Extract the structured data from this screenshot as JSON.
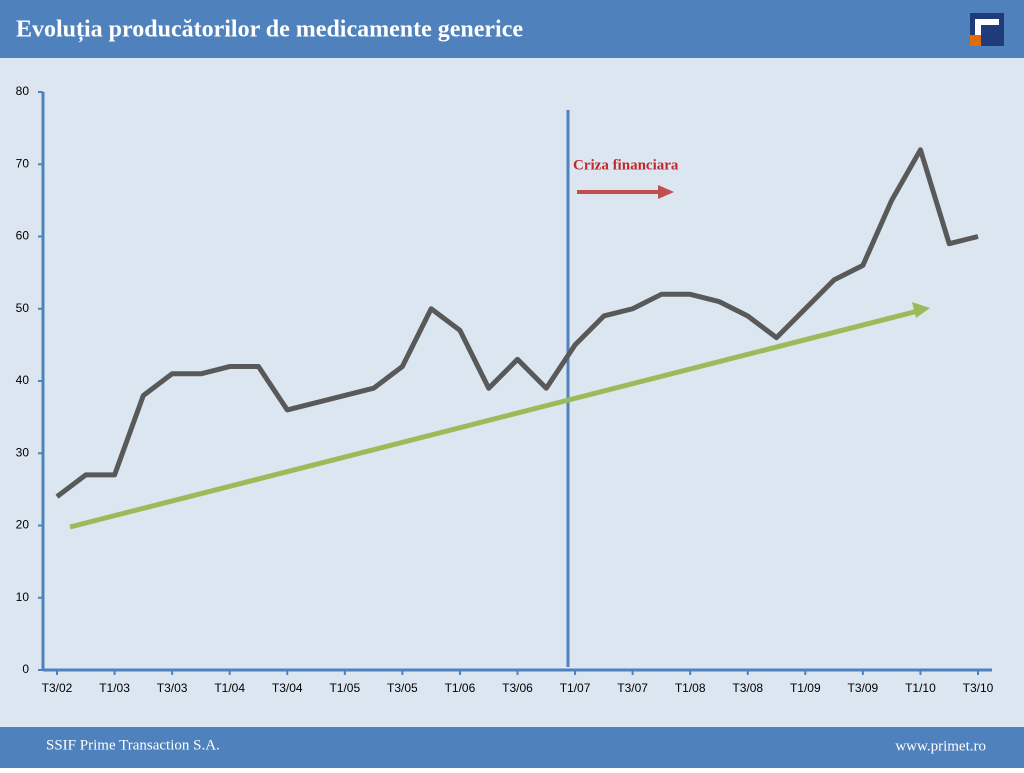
{
  "header": {
    "title": "Evoluția producătorilor de medicamente generice"
  },
  "footer": {
    "company": "SSIF Prime Transaction S.A.",
    "url": "www.primet.ro"
  },
  "chart_data": {
    "type": "line",
    "categories": [
      "T3/02",
      null,
      "T1/03",
      null,
      "T3/03",
      null,
      "T1/04",
      null,
      "T3/04",
      null,
      "T1/05",
      null,
      "T3/05",
      null,
      "T1/06",
      null,
      "T3/06",
      null,
      "T1/07",
      null,
      "T3/07",
      null,
      "T1/08",
      null,
      "T3/08",
      null,
      "T1/09",
      null,
      "T3/09",
      null,
      "T1/10",
      null,
      "T3/10"
    ],
    "values": [
      24,
      27,
      27,
      38,
      41,
      41,
      42,
      42,
      36,
      37,
      38,
      39,
      42,
      50,
      47,
      39,
      43,
      39,
      45,
      49,
      50,
      52,
      52,
      51,
      49,
      46,
      50,
      54,
      56,
      65,
      72,
      59,
      60
    ],
    "color": "#595959",
    "ylim": [
      0,
      80
    ],
    "yticks": [
      0,
      10,
      20,
      30,
      40,
      50,
      60,
      70,
      80
    ],
    "annotations": [
      "Criza financiara"
    ]
  }
}
